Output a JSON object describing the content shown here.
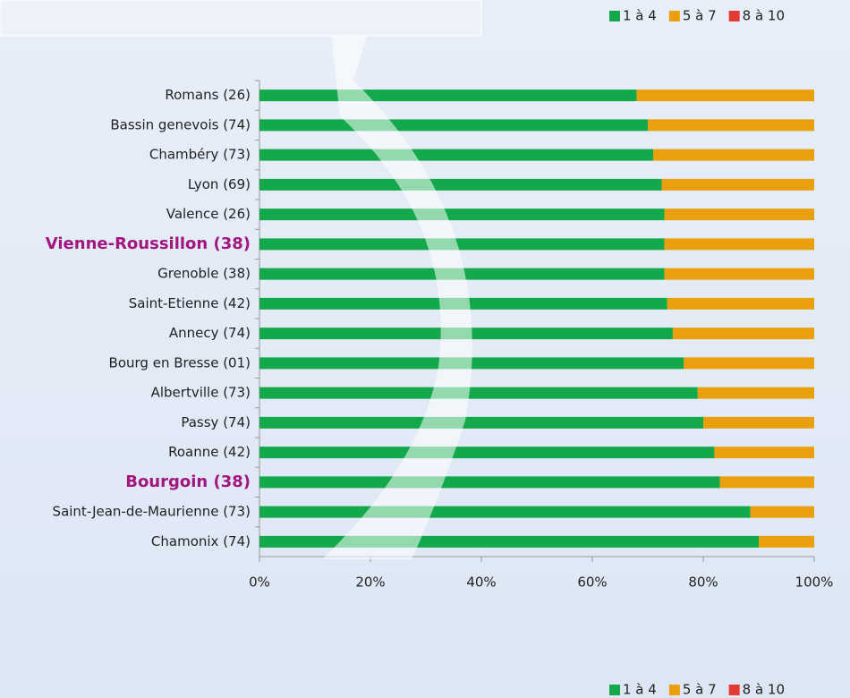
{
  "chart_data": {
    "type": "stacked-barh",
    "categories": [
      "Romans (26)",
      "Bassin genevois (74)",
      "Chambéry (73)",
      "Lyon (69)",
      "Valence (26)",
      "Vienne-Roussillon (38)",
      "Grenoble (38)",
      "Saint-Etienne (42)",
      "Annecy (74)",
      "Bourg en Bresse (01)",
      "Albertville (73)",
      "Passy (74)",
      "Roanne (42)",
      "Bourgoin (38)",
      "Saint-Jean-de-Maurienne (73)",
      "Chamonix (74)"
    ],
    "highlighted": [
      5,
      13
    ],
    "highlight_color": "#a3157f",
    "series": [
      {
        "name": "1 à 4",
        "color": "#13a84b",
        "values": [
          68,
          70,
          71,
          72.5,
          73,
          73,
          73,
          73.5,
          74.5,
          76.5,
          79,
          80,
          82,
          83,
          88.5,
          90
        ]
      },
      {
        "name": "5 à 7",
        "color": "#eaa00c",
        "values": [
          32,
          30,
          29,
          27.5,
          27,
          27,
          27,
          26.5,
          25.5,
          23.5,
          21,
          20,
          18,
          17,
          11.5,
          10
        ]
      },
      {
        "name": "8 à 10",
        "color": "#e33a35",
        "values": [
          0,
          0,
          0,
          0,
          0,
          0,
          0,
          0,
          0,
          0,
          0,
          0,
          0,
          0,
          0,
          0
        ]
      }
    ],
    "xlim": [
      0,
      100
    ],
    "xticks": [
      {
        "value": 0,
        "label": "0%"
      },
      {
        "value": 20,
        "label": "20%"
      },
      {
        "value": 40,
        "label": "40%"
      },
      {
        "value": 60,
        "label": "60%"
      },
      {
        "value": 80,
        "label": "80%"
      },
      {
        "value": 100,
        "label": "100%"
      }
    ]
  }
}
